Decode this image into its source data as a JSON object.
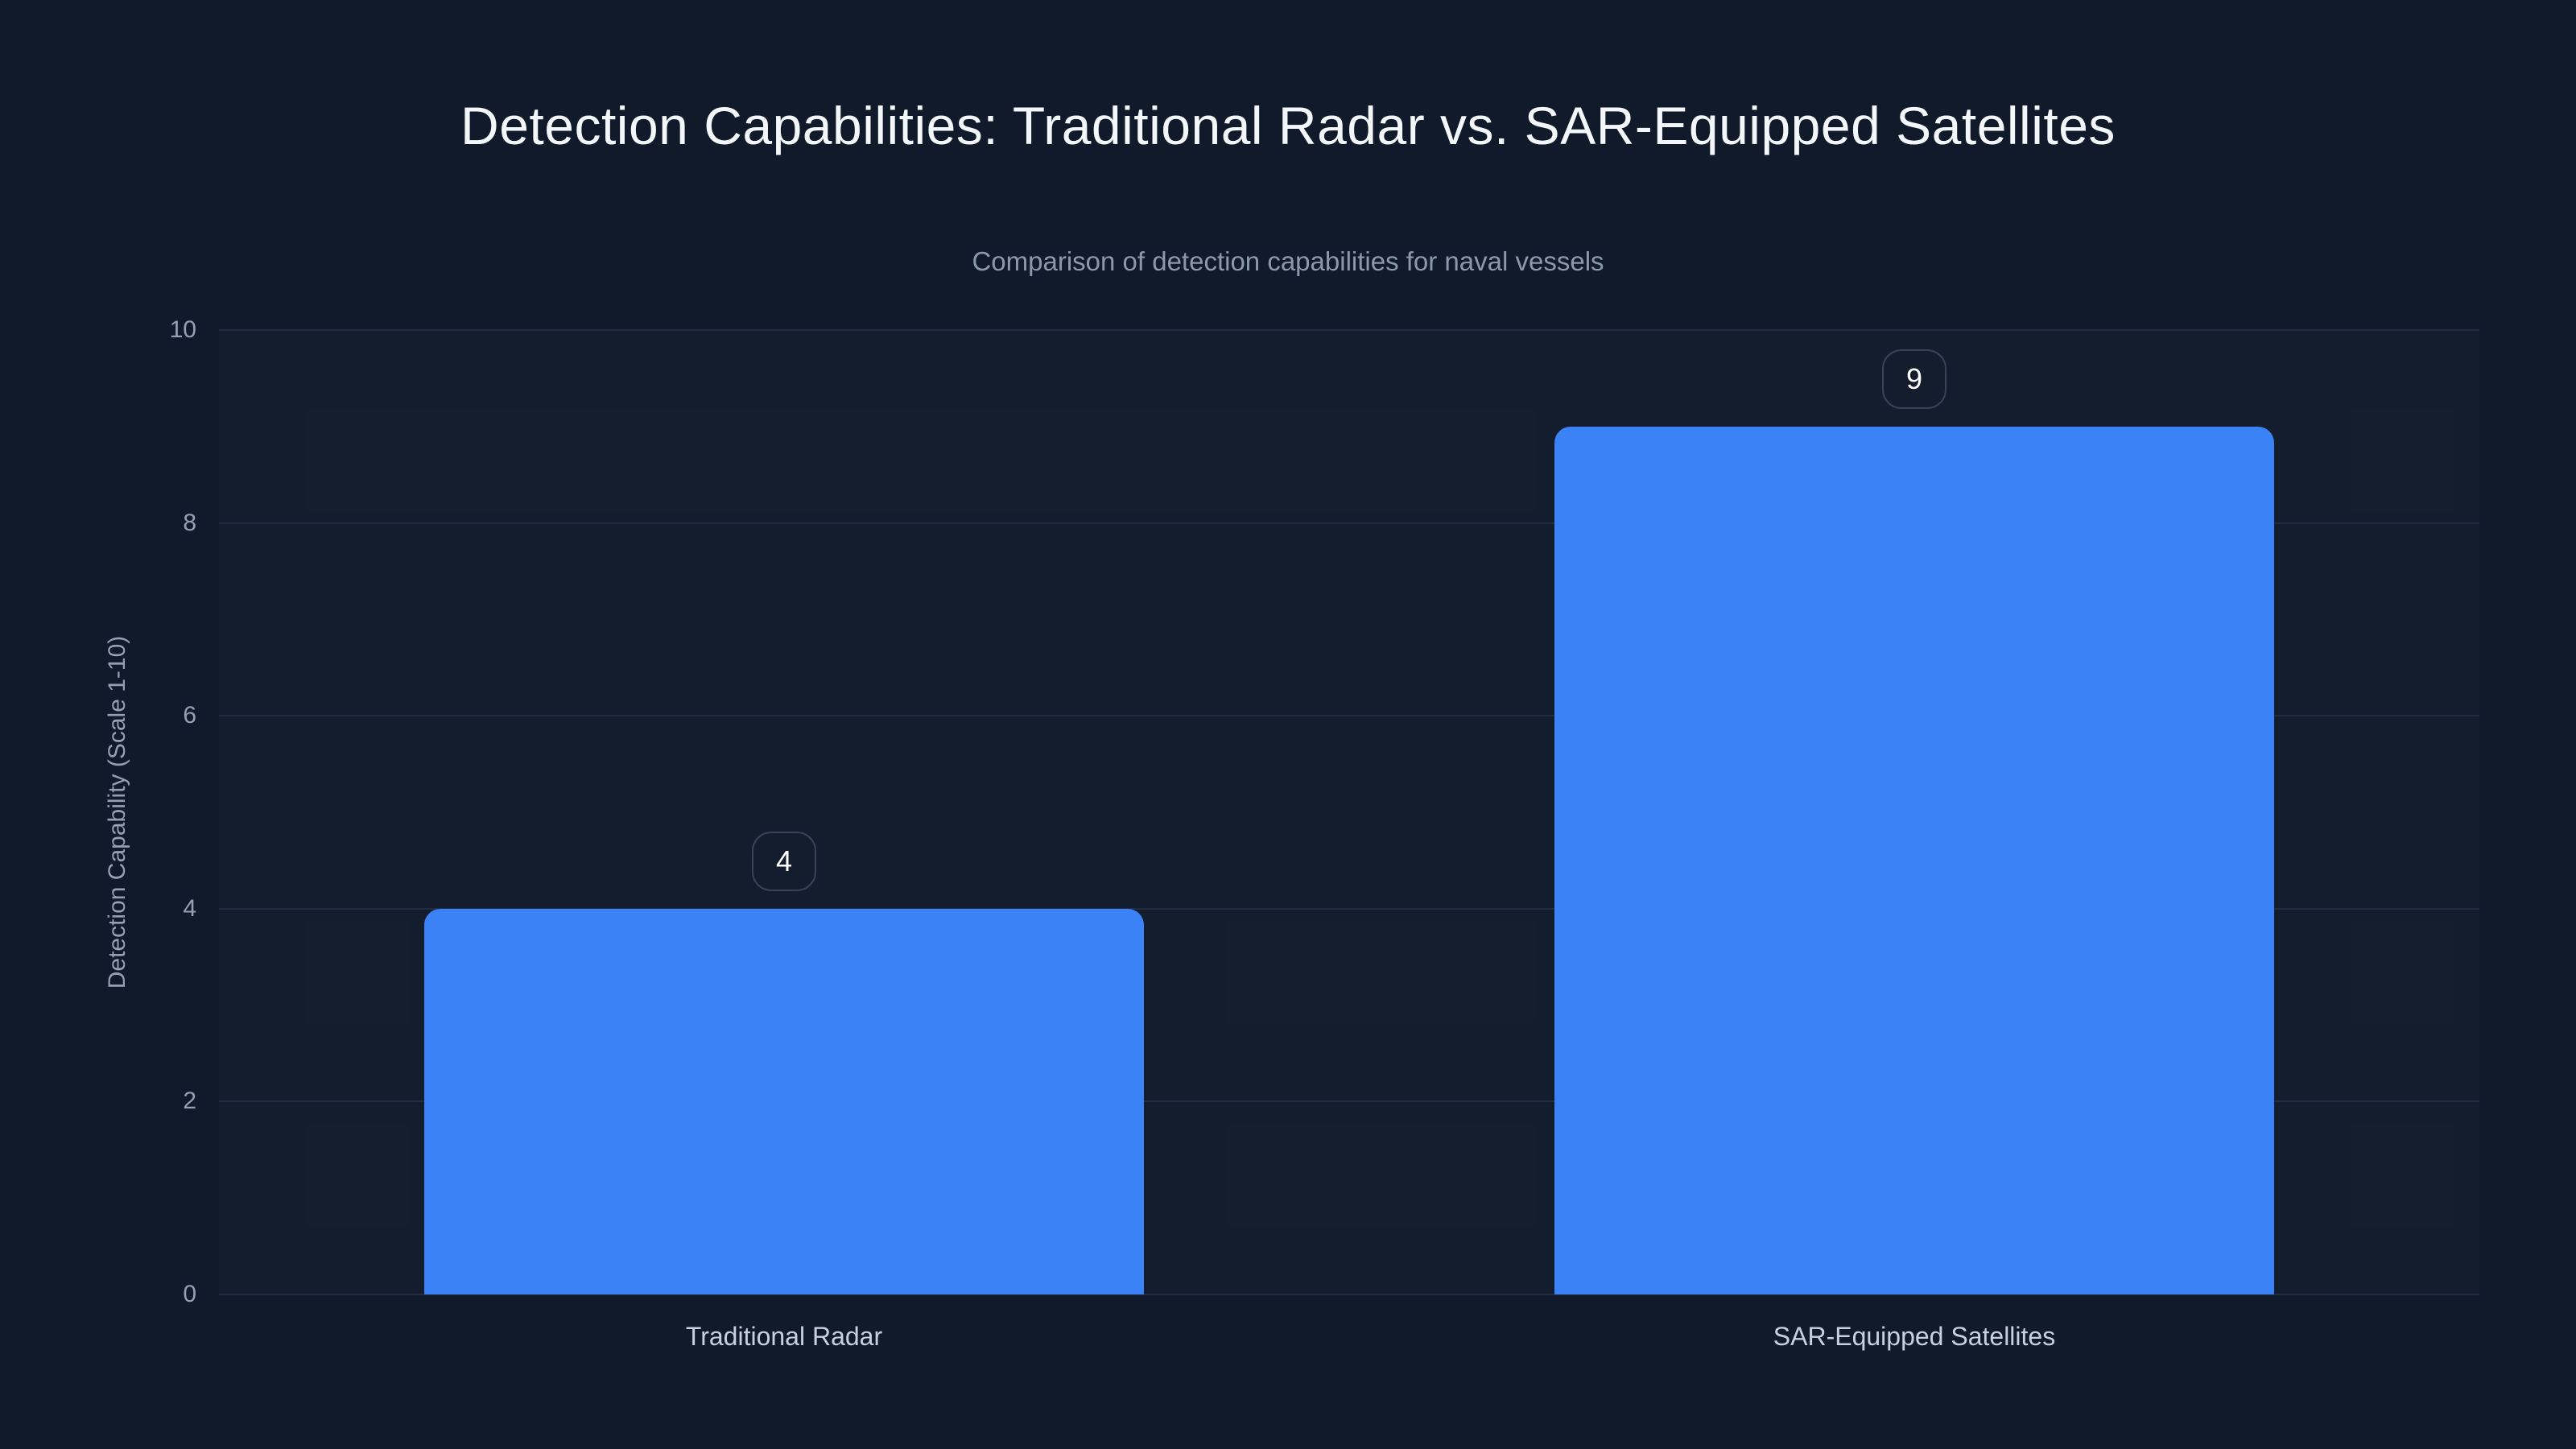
{
  "colors": {
    "background": "#111a2b",
    "bar": "#3b82f6",
    "gridline": "#222c42",
    "title_text": "#f4f7fa",
    "muted_text": "#8b99ad",
    "tick_text": "#94a1b4",
    "category_text": "#c7d0dc",
    "badge_border": "#3a4356",
    "badge_text": "#ffffff"
  },
  "chart_data": {
    "type": "bar",
    "title": "Detection Capabilities: Traditional Radar vs. SAR-Equipped Satellites",
    "subtitle": "Comparison of detection capabilities for naval vessels",
    "ylabel": "Detection Capability (Scale 1-10)",
    "xlabel": "",
    "categories": [
      "Traditional Radar",
      "SAR-Equipped Satellites"
    ],
    "values": [
      4,
      9
    ],
    "value_labels": [
      "4",
      "9"
    ],
    "ylim": [
      0,
      10
    ],
    "yticks": [
      0,
      2,
      4,
      6,
      8,
      10
    ],
    "grid": true,
    "legend": "none",
    "orientation": "vertical"
  }
}
